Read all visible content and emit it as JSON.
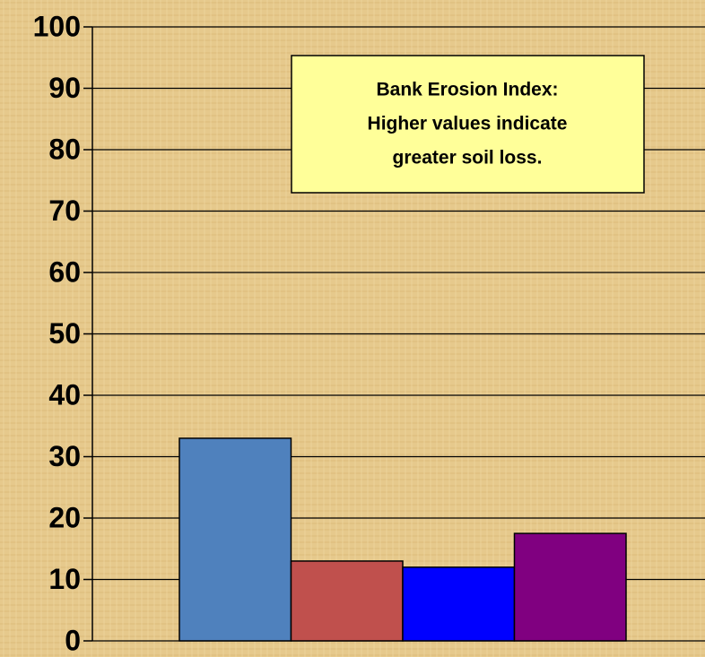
{
  "chart_data": {
    "type": "bar",
    "annotation": [
      "Bank Erosion Index:",
      "Higher values indicate",
      "greater soil loss."
    ],
    "categories": [
      null,
      null,
      null,
      null
    ],
    "values": [
      33,
      13,
      12,
      17.5
    ],
    "colors": [
      "#4f81bd",
      "#c0504d",
      "#0000ff",
      "#800080"
    ],
    "ylim": [
      0,
      100
    ],
    "yticks": [
      0,
      10,
      20,
      30,
      40,
      50,
      60,
      70,
      80,
      90,
      100
    ],
    "grid": true
  }
}
